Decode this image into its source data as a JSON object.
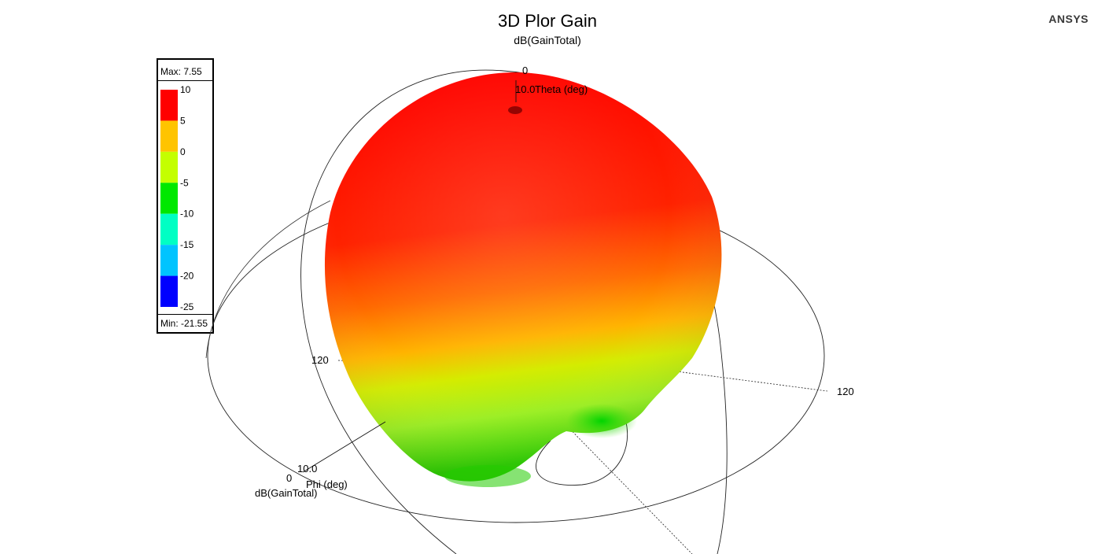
{
  "chart_data": {
    "type": "3d-polar-surface",
    "title": "3D Plor Gain",
    "subtitle": "dB(GainTotal)",
    "quantity": "dB(GainTotal)",
    "max_label": "Max: 7.55",
    "min_label": "Min: -21.55",
    "max": 7.55,
    "min": -21.55,
    "scale_ticks": [
      10,
      5,
      0,
      -5,
      -10,
      -15,
      -20,
      -25
    ],
    "scale_colors": [
      "#ff0000",
      "#ffc400",
      "#c4ff00",
      "#00e800",
      "#00ffc4",
      "#00c4ff",
      "#0000ff"
    ],
    "axis_labels": {
      "theta": "Theta (deg)",
      "phi": "Phi (deg)",
      "gain": "dB(GainTotal)"
    },
    "tick_labels": {
      "theta_zero": "0",
      "theta_radius": "10.0",
      "phi_zero": "0",
      "phi_radius": "10.0",
      "phi_120_left": "120",
      "phi_120_right": "120"
    },
    "brand": "ANSYS"
  }
}
